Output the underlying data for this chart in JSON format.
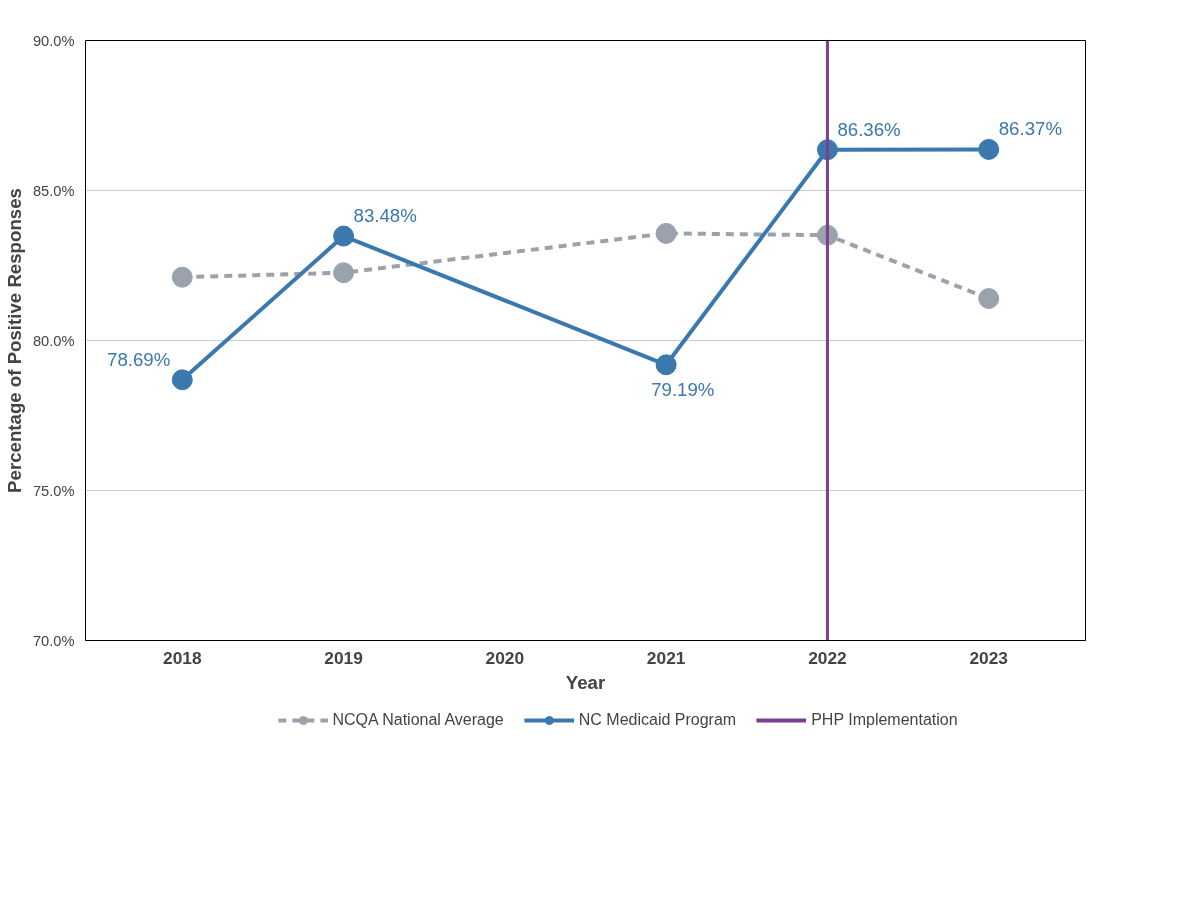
{
  "chart_data": {
    "type": "line",
    "xlabel": "Year",
    "ylabel": "Percentage of Positive Responses",
    "categories": [
      "2018",
      "2019",
      "2020",
      "2021",
      "2022",
      "2023"
    ],
    "series": [
      {
        "name": "NCQA National Average",
        "color": "#9aa3ad",
        "line_style": "dashed",
        "values": [
          82.11,
          82.26,
          null,
          83.57,
          83.51,
          81.4
        ]
      },
      {
        "name": "NC Medicaid Program",
        "color": "#3b78ad",
        "line_style": "solid",
        "values": [
          78.69,
          83.48,
          null,
          79.19,
          86.36,
          86.37
        ],
        "value_labels": [
          "78.69%",
          "83.48%",
          null,
          "79.19%",
          "86.36%",
          "86.37%"
        ]
      }
    ],
    "ref_lines": [
      {
        "axis": "x",
        "value": "2022",
        "label": "PHP Implementation",
        "color": "#7b3f8c"
      }
    ],
    "ylim": [
      70,
      90
    ],
    "yticks": [
      {
        "value": 70,
        "label": "70.0%"
      },
      {
        "value": 75,
        "label": "75.0%"
      },
      {
        "value": 80,
        "label": "80.0%"
      },
      {
        "value": 85,
        "label": "85.0%"
      },
      {
        "value": 90,
        "label": "90.0%"
      }
    ],
    "grid": "y",
    "legend": "bottom",
    "marker": "circle"
  }
}
